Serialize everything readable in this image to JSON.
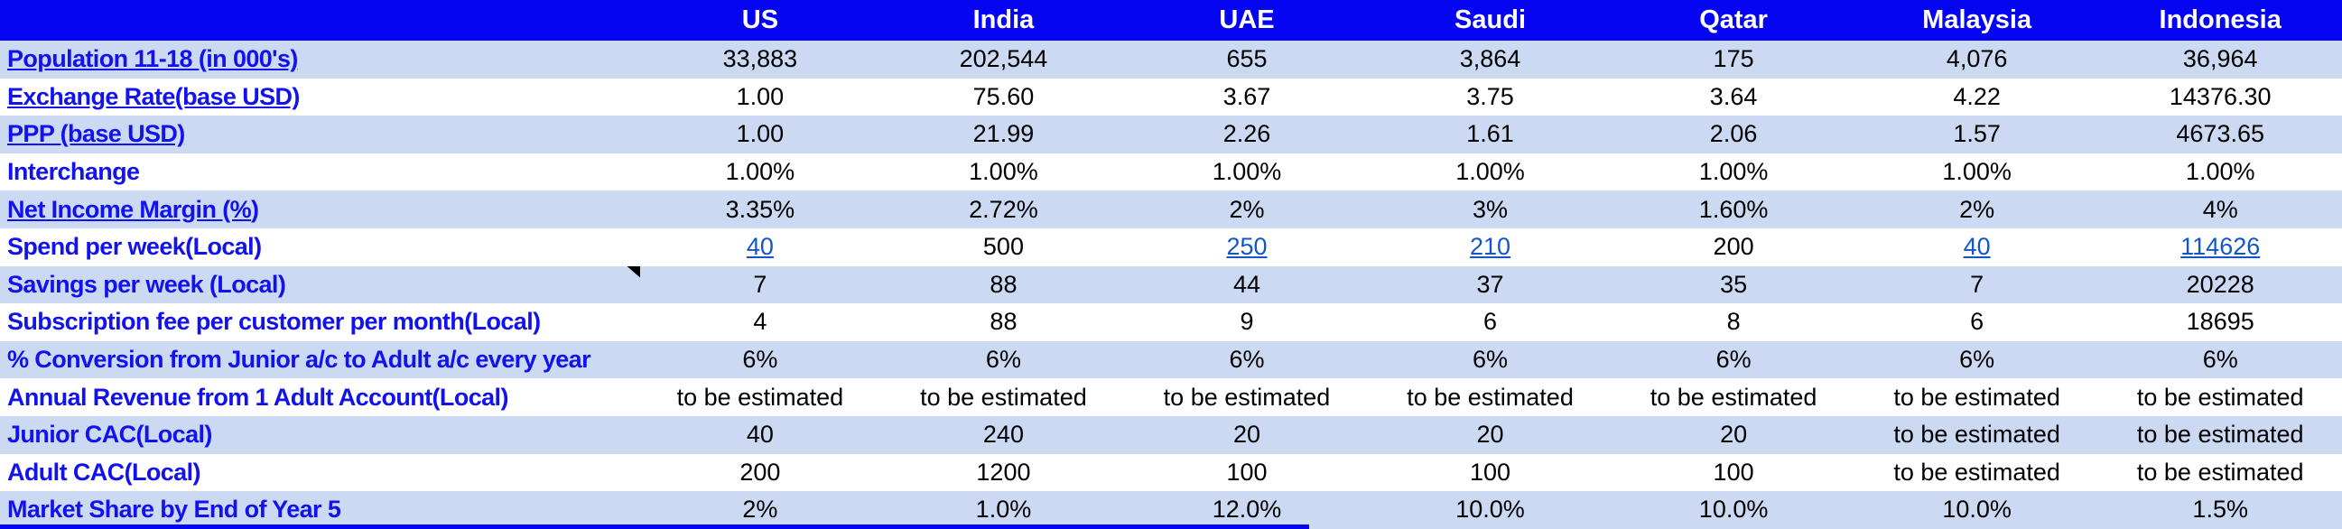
{
  "colors": {
    "header_bg": "#0505f2",
    "band_bg": "#ccd9f3",
    "label_text": "#1212ee",
    "link": "#1155cc",
    "value_text": "#000000"
  },
  "table": {
    "corner": "",
    "columns": [
      "US",
      "India",
      "UAE",
      "Saudi",
      "Qatar",
      "Malaysia",
      "Indonesia"
    ],
    "rows": [
      {
        "label": {
          "underlined": "Population 11-18 (in 000's)",
          "plain": ""
        },
        "values": [
          "33,883",
          "202,544",
          "655",
          "3,864",
          "175",
          "4,076",
          "36,964"
        ],
        "links": []
      },
      {
        "label": {
          "underlined": "Exchange Rate(base USD)",
          "plain": ""
        },
        "values": [
          "1.00",
          "75.60",
          "3.67",
          "3.75",
          "3.64",
          "4.22",
          "14376.30"
        ],
        "links": []
      },
      {
        "label": {
          "underlined": "PPP (base USD)",
          "plain": ""
        },
        "values": [
          "1.00",
          "21.99",
          "2.26",
          "1.61",
          "2.06",
          "1.57",
          "4673.65"
        ],
        "links": []
      },
      {
        "label": {
          "underlined": "",
          "plain": "Interchange"
        },
        "values": [
          "1.00%",
          "1.00%",
          "1.00%",
          "1.00%",
          "1.00%",
          "1.00%",
          "1.00%"
        ],
        "links": []
      },
      {
        "label": {
          "underlined": "Net Income Margin (%",
          "plain": ")"
        },
        "values": [
          "3.35%",
          "2.72%",
          "2%",
          "3%",
          "1.60%",
          "2%",
          "4%"
        ],
        "links": []
      },
      {
        "label": {
          "underlined": "",
          "plain": "Spend per week(Local)"
        },
        "values": [
          "40",
          "500",
          "250",
          "210",
          "200",
          "40",
          "114626"
        ],
        "links": [
          0,
          2,
          3,
          5,
          6
        ]
      },
      {
        "label": {
          "underlined": "",
          "plain": "Savings per week (Local)"
        },
        "values": [
          "7",
          "88",
          "44",
          "37",
          "35",
          "7",
          "20228"
        ],
        "links": [],
        "note": true
      },
      {
        "label": {
          "underlined": "",
          "plain": "Subscription fee per customer per month(Local)"
        },
        "values": [
          "4",
          "88",
          "9",
          "6",
          "8",
          "6",
          "18695"
        ],
        "links": []
      },
      {
        "label": {
          "underlined": "",
          "plain": "% Conversion from Junior a/c to Adult a/c every year"
        },
        "values": [
          "6%",
          "6%",
          "6%",
          "6%",
          "6%",
          "6%",
          "6%"
        ],
        "links": []
      },
      {
        "label": {
          "underlined": "",
          "plain": "Annual Revenue from 1 Adult Account(Local)"
        },
        "values": [
          "to be estimated",
          "to be estimated",
          "to be estimated",
          "to be estimated",
          "to be estimated",
          "to be estimated",
          "to be estimated"
        ],
        "links": []
      },
      {
        "label": {
          "underlined": "",
          "plain": "Junior CAC(Local)"
        },
        "values": [
          "40",
          "240",
          "20",
          "20",
          "20",
          "to be estimated",
          "to be estimated"
        ],
        "links": []
      },
      {
        "label": {
          "underlined": "",
          "plain": "Adult CAC(Local)"
        },
        "values": [
          "200",
          "1200",
          "100",
          "100",
          "100",
          "to be estimated",
          "to be estimated"
        ],
        "links": []
      },
      {
        "label": {
          "underlined": "",
          "plain": "Market Share by End of Year 5"
        },
        "values": [
          "2%",
          "1.0%",
          "12.0%",
          "10.0%",
          "10.0%",
          "10.0%",
          "1.5%"
        ],
        "links": []
      }
    ]
  }
}
